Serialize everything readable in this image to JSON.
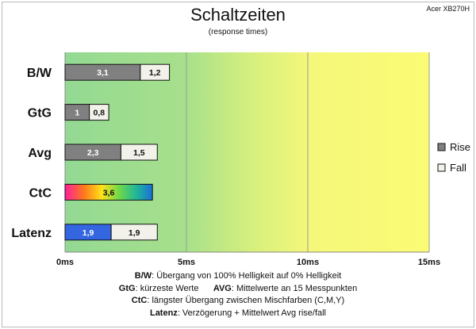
{
  "corner_label": "Acer XB270H",
  "chart_data": {
    "type": "bar",
    "orientation": "horizontal",
    "stacked": true,
    "title": "Schaltzeiten",
    "subtitle": "(response times)",
    "categories": [
      "B/W",
      "GtG",
      "Avg",
      "CtC",
      "Latenz"
    ],
    "series": [
      {
        "name": "Rise",
        "values": [
          3.1,
          1,
          2.3,
          3.6,
          1.9
        ],
        "labels": [
          "3,1",
          "1",
          "2,3",
          "3,6",
          "1,9"
        ],
        "color": "#808080"
      },
      {
        "name": "Fall",
        "values": [
          1.2,
          0.8,
          1.5,
          null,
          1.9
        ],
        "labels": [
          "1,2",
          "0,8",
          "1,5",
          "",
          "1,9"
        ],
        "color": "#f2f2ea"
      }
    ],
    "special_fills": {
      "CtC": "rainbow",
      "Latenz_rise": "#3366e0"
    },
    "x_ticks": [
      "0ms",
      "5ms",
      "10ms",
      "15ms"
    ],
    "xlim": [
      0,
      15
    ],
    "grid": true,
    "background_zones": [
      "green",
      "yellow-green",
      "yellow"
    ],
    "legend_position": "right"
  },
  "notes": [
    {
      "key": "B/W",
      "text": ":  Übergang von 100% Helligkeit auf 0% Helligkeit"
    },
    {
      "key": "GtG",
      "text": ": kürzeste  Werte",
      "key2": "AVG",
      "text2": ": Mittelwerte  an 15 Messpunkten"
    },
    {
      "key": "CtC",
      "text": ": längster Übergang zwischen Mischfarben  (C,M,Y)"
    },
    {
      "key": "Latenz",
      "text": ": Verzögerung  + Mittelwert  Avg rise/fall"
    }
  ]
}
